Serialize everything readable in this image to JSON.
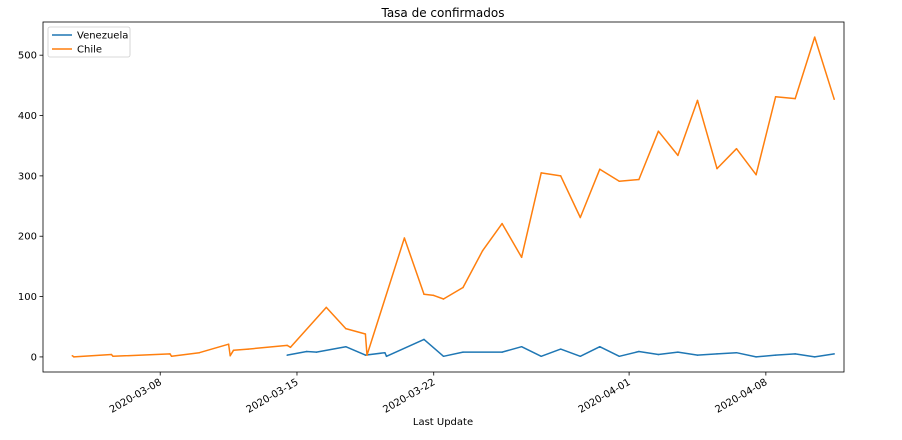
{
  "chart_data": {
    "type": "line",
    "title": "Tasa de confirmados",
    "xlabel": "Last Update",
    "ylabel": "",
    "ylim": [
      -25,
      555
    ],
    "xlim": [
      "2020-03-02",
      "2020-04-12"
    ],
    "y_ticks": [
      0,
      100,
      200,
      300,
      400,
      500
    ],
    "x_ticks": [
      "2020-03-08",
      "2020-03-15",
      "2020-03-22",
      "2020-04-01",
      "2020-04-08"
    ],
    "grid": false,
    "legend_position": "upper left",
    "series": [
      {
        "name": "Venezuela",
        "color": "#1f77b4",
        "points": [
          [
            "2020-03-14T12:00",
            3
          ],
          [
            "2020-03-15T12:00",
            9
          ],
          [
            "2020-03-16T00:00",
            8
          ],
          [
            "2020-03-17T12:00",
            17
          ],
          [
            "2020-03-18T12:00",
            3
          ],
          [
            "2020-03-19T12:00",
            7
          ],
          [
            "2020-03-19T14:00",
            1
          ],
          [
            "2020-03-21T12:00",
            29
          ],
          [
            "2020-03-22T12:00",
            1
          ],
          [
            "2020-03-23T12:00",
            8
          ],
          [
            "2020-03-25T12:00",
            8
          ],
          [
            "2020-03-26T12:00",
            17
          ],
          [
            "2020-03-27T12:00",
            1
          ],
          [
            "2020-03-28T12:00",
            13
          ],
          [
            "2020-03-29T12:00",
            1
          ],
          [
            "2020-03-30T12:00",
            17
          ],
          [
            "2020-03-31T12:00",
            1
          ],
          [
            "2020-04-01T12:00",
            9
          ],
          [
            "2020-04-02T12:00",
            4
          ],
          [
            "2020-04-03T12:00",
            8
          ],
          [
            "2020-04-04T12:00",
            3
          ],
          [
            "2020-04-05T12:00",
            5
          ],
          [
            "2020-04-06T12:00",
            7
          ],
          [
            "2020-04-07T12:00",
            0
          ],
          [
            "2020-04-08T12:00",
            3
          ],
          [
            "2020-04-09T12:00",
            5
          ],
          [
            "2020-04-10T12:00",
            0
          ],
          [
            "2020-04-11T12:00",
            5
          ]
        ]
      },
      {
        "name": "Chile",
        "color": "#ff7f0e",
        "points": [
          [
            "2020-03-03T12:00",
            2
          ],
          [
            "2020-03-03T14:00",
            0
          ],
          [
            "2020-03-05T12:00",
            4
          ],
          [
            "2020-03-05T14:00",
            1
          ],
          [
            "2020-03-08T12:00",
            5
          ],
          [
            "2020-03-08T14:00",
            1
          ],
          [
            "2020-03-10T00:00",
            7
          ],
          [
            "2020-03-11T12:00",
            21
          ],
          [
            "2020-03-11T14:00",
            2
          ],
          [
            "2020-03-11T18:00",
            11
          ],
          [
            "2020-03-12T12:00",
            13
          ],
          [
            "2020-03-14T12:00",
            19
          ],
          [
            "2020-03-14T16:00",
            16
          ],
          [
            "2020-03-16T12:00",
            82
          ],
          [
            "2020-03-17T12:00",
            47
          ],
          [
            "2020-03-18T12:00",
            38
          ],
          [
            "2020-03-18T14:00",
            3
          ],
          [
            "2020-03-20T12:00",
            197
          ],
          [
            "2020-03-21T12:00",
            104
          ],
          [
            "2020-03-22T00:00",
            102
          ],
          [
            "2020-03-22T12:00",
            96
          ],
          [
            "2020-03-23T12:00",
            115
          ],
          [
            "2020-03-24T12:00",
            176
          ],
          [
            "2020-03-25T12:00",
            221
          ],
          [
            "2020-03-26T12:00",
            165
          ],
          [
            "2020-03-27T12:00",
            305
          ],
          [
            "2020-03-28T12:00",
            300
          ],
          [
            "2020-03-29T12:00",
            231
          ],
          [
            "2020-03-30T12:00",
            311
          ],
          [
            "2020-03-31T12:00",
            291
          ],
          [
            "2020-04-01T12:00",
            294
          ],
          [
            "2020-04-02T12:00",
            374
          ],
          [
            "2020-04-03T12:00",
            334
          ],
          [
            "2020-04-04T12:00",
            425
          ],
          [
            "2020-04-05T12:00",
            312
          ],
          [
            "2020-04-06T12:00",
            345
          ],
          [
            "2020-04-07T12:00",
            302
          ],
          [
            "2020-04-08T12:00",
            431
          ],
          [
            "2020-04-09T12:00",
            428
          ],
          [
            "2020-04-10T12:00",
            530
          ],
          [
            "2020-04-11T12:00",
            427
          ]
        ]
      }
    ]
  }
}
